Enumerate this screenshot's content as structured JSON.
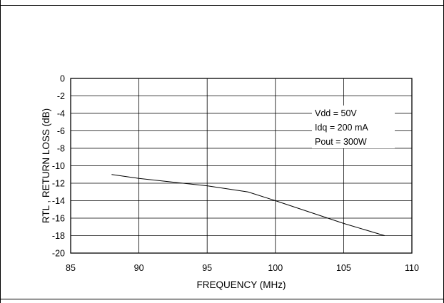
{
  "chart_data": {
    "type": "line",
    "title": "",
    "xlabel": "FREQUENCY (MHz)",
    "ylabel": "RTL , RETURN LOSS (dB)",
    "xlim": [
      85,
      110
    ],
    "ylim": [
      -20,
      0
    ],
    "xticks": [
      85,
      90,
      95,
      100,
      105,
      110
    ],
    "yticks": [
      0,
      -2,
      -4,
      -6,
      -8,
      -10,
      -12,
      -14,
      -16,
      -18,
      -20
    ],
    "grid": true,
    "annotations": [
      "Vdd = 50V",
      "Idq = 200 mA",
      "Pout = 300W"
    ],
    "series": [
      {
        "x": [
          88,
          90,
          95,
          98,
          100,
          105,
          108
        ],
        "y": [
          -11,
          -11.45,
          -12.3,
          -13,
          -14,
          -16.6,
          -18
        ]
      }
    ]
  }
}
